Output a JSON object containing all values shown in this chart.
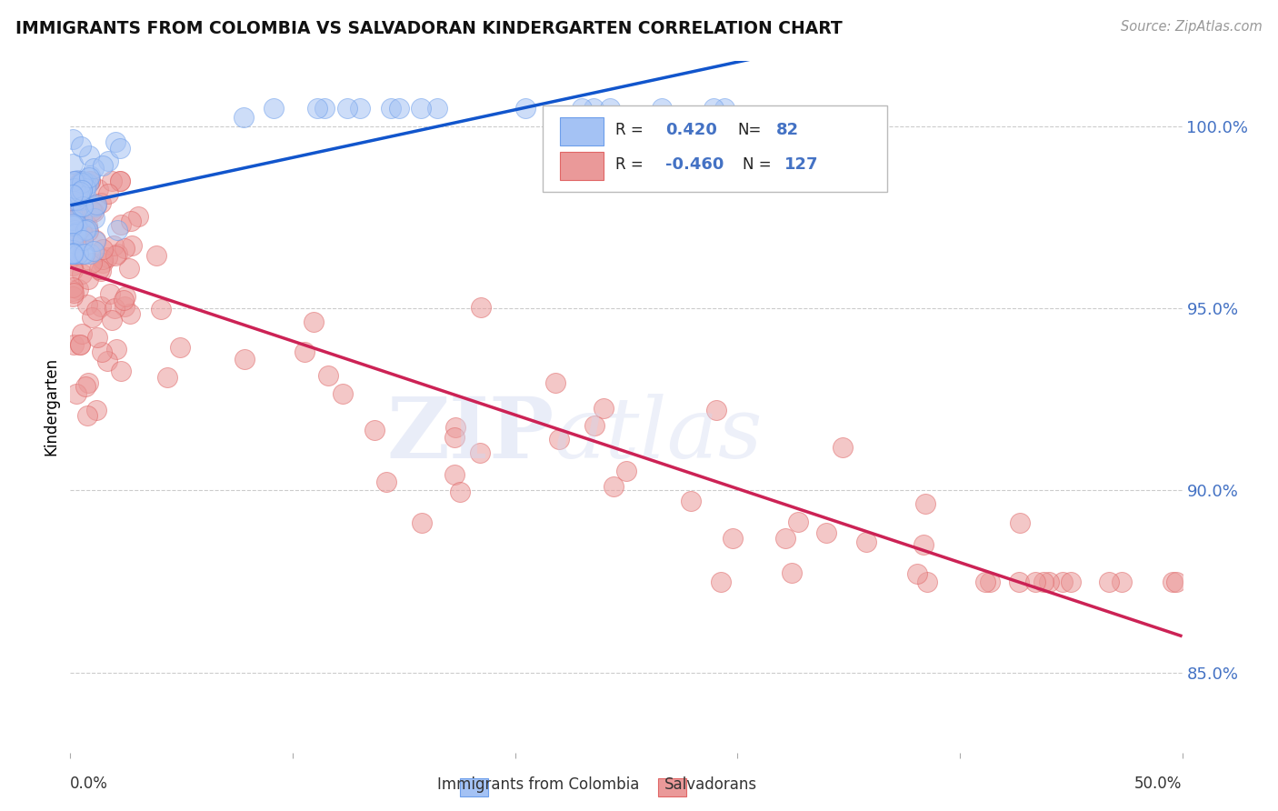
{
  "title": "IMMIGRANTS FROM COLOMBIA VS SALVADORAN KINDERGARTEN CORRELATION CHART",
  "source": "Source: ZipAtlas.com",
  "ylabel": "Kindergarten",
  "xlim": [
    0.0,
    0.5
  ],
  "ylim": [
    0.828,
    1.018
  ],
  "colombia_R": 0.42,
  "colombia_N": 82,
  "salvadoran_R": -0.46,
  "salvadoran_N": 127,
  "colombia_color": "#a4c2f4",
  "colombia_edge": "#6d9eeb",
  "salvadoran_color": "#ea9999",
  "salvadoran_edge": "#e06666",
  "trend_blue": "#1155cc",
  "trend_pink": "#cc2255",
  "ytick_values": [
    0.85,
    0.9,
    0.95,
    1.0
  ],
  "ytick_labels": [
    "85.0%",
    "90.0%",
    "95.0%",
    "100.0%"
  ],
  "grid_color": "#cccccc",
  "right_axis_color": "#4472c4",
  "legend_R_color": "#4472c4",
  "watermark_color": "#d0d8f0"
}
